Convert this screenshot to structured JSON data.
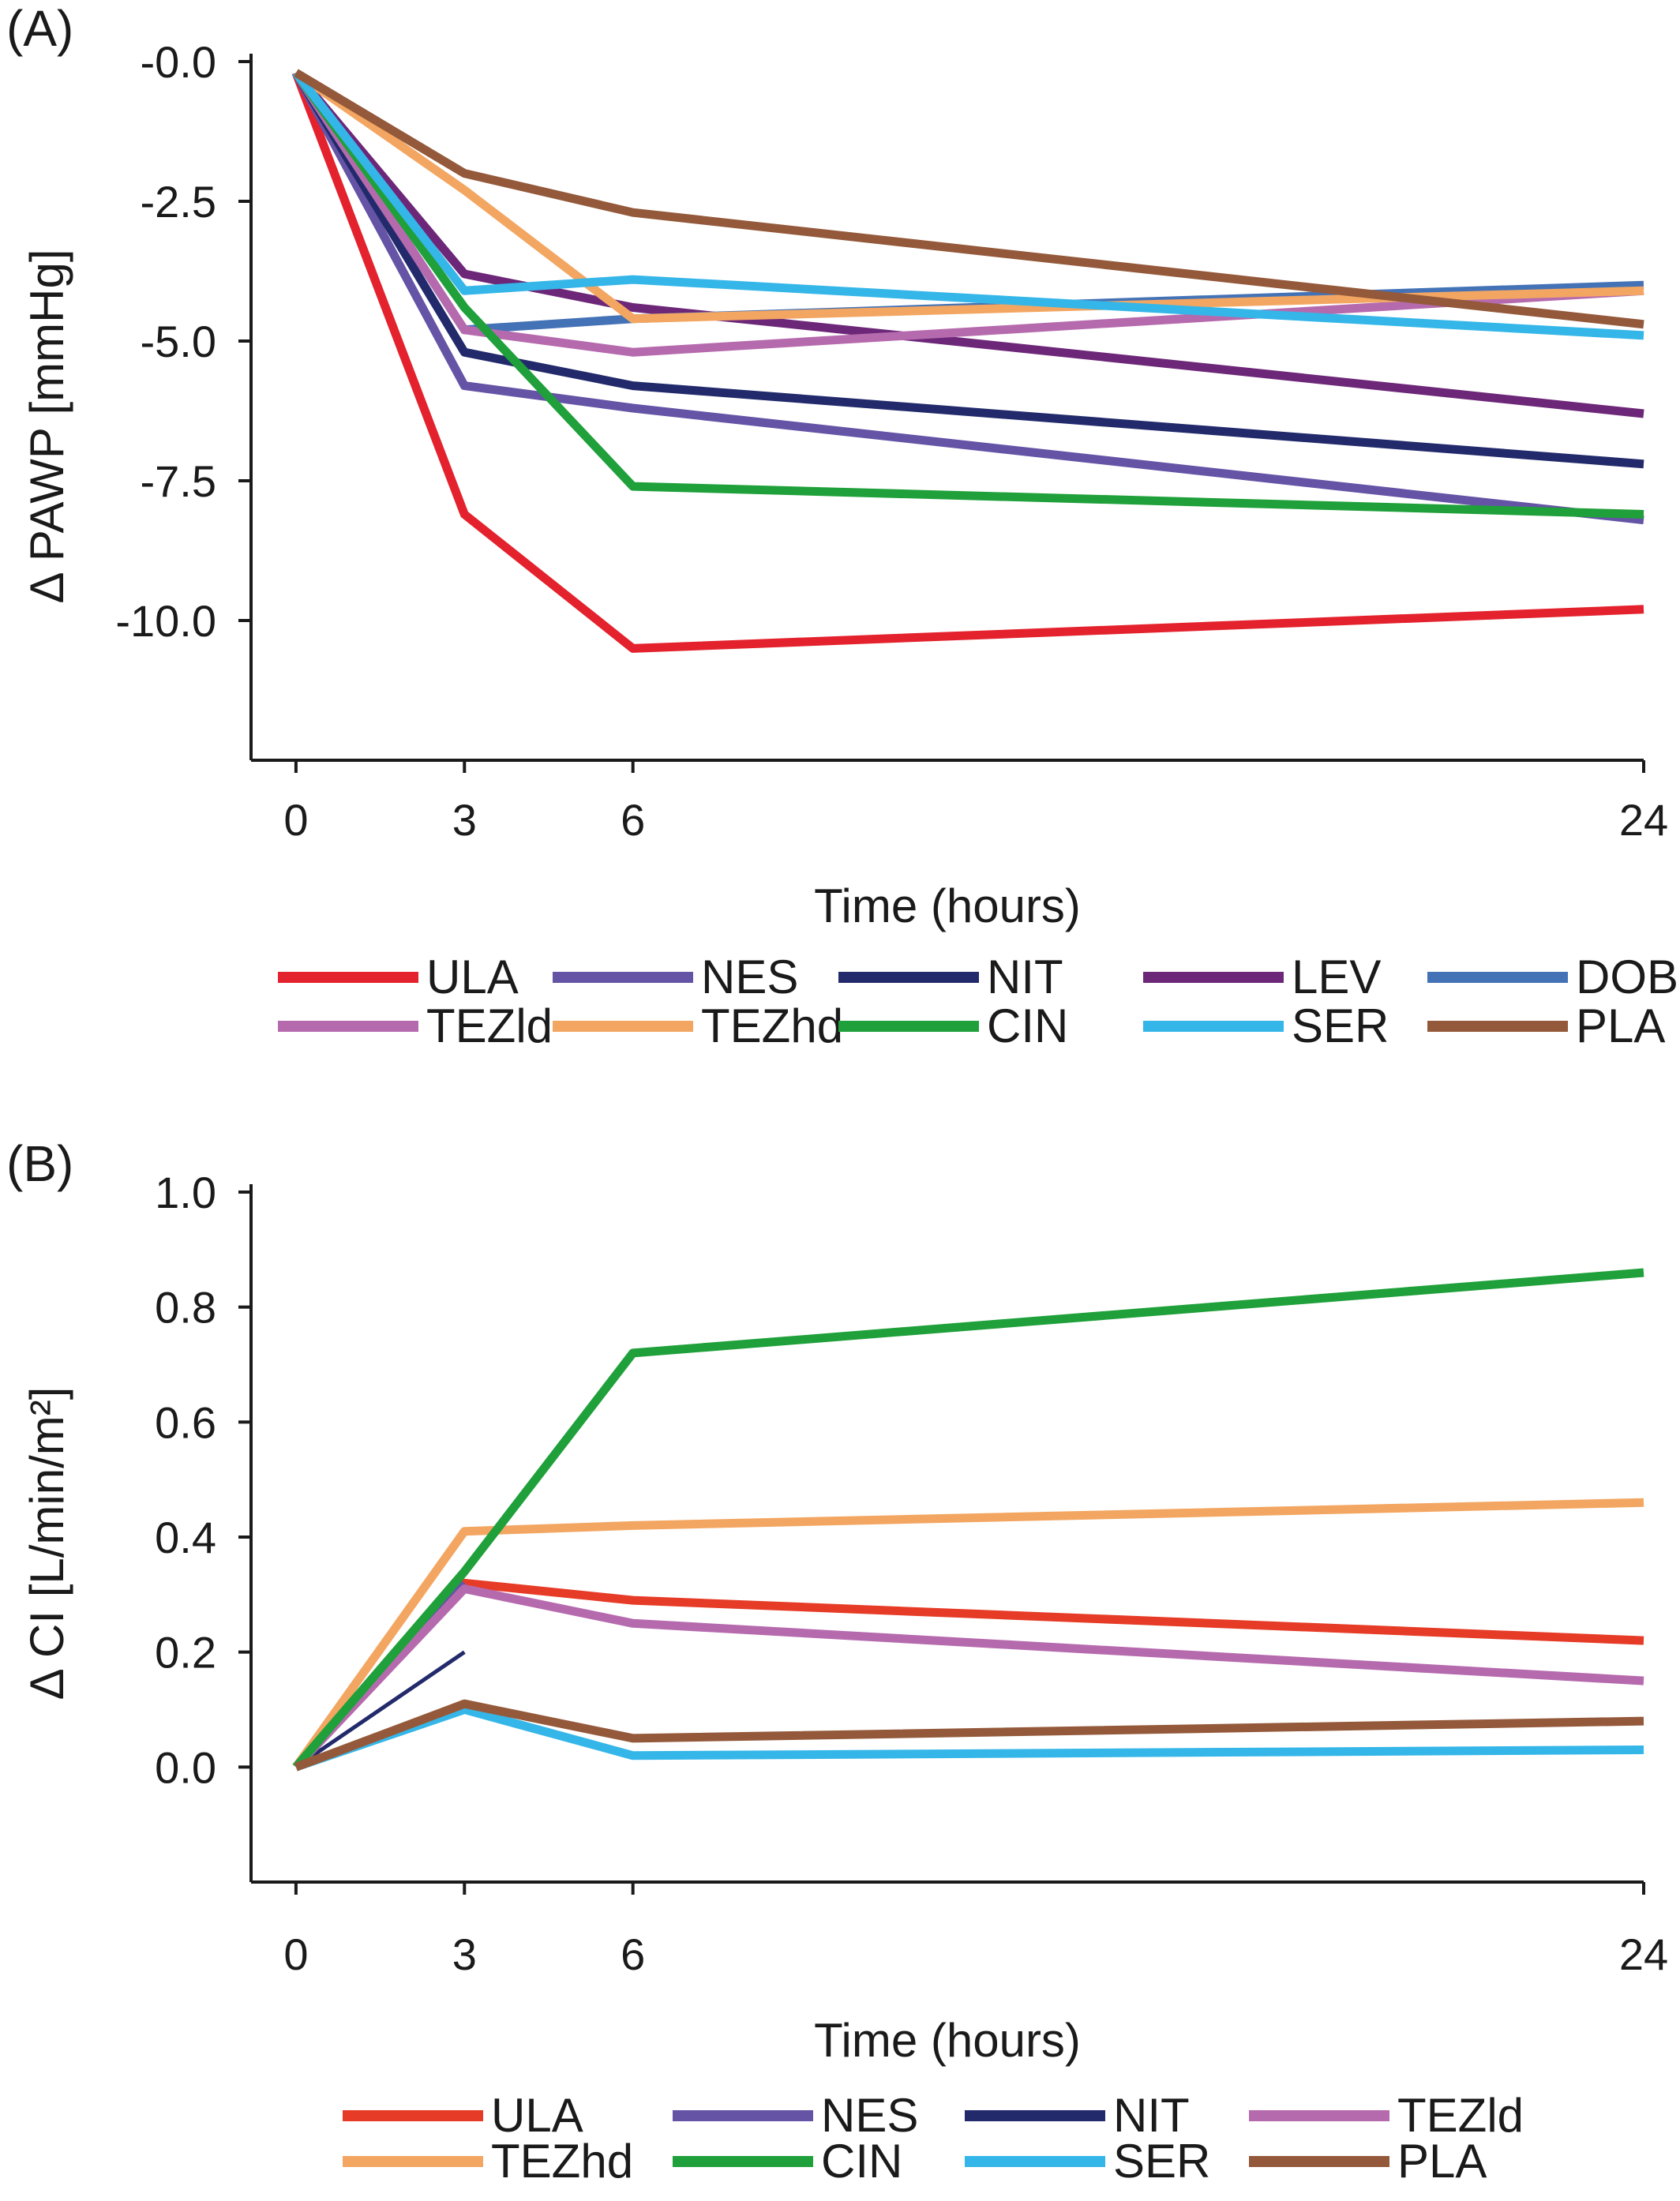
{
  "figure": {
    "panels": [
      {
        "panel_label": "(A)",
        "chart_data": {
          "type": "line",
          "title": "",
          "xlabel": "Time (hours)",
          "ylabel": "Δ PAWP [mmHg]",
          "x": [
            0,
            3,
            6,
            24
          ],
          "xticks": [
            0,
            3,
            6,
            24
          ],
          "yticks": [
            -10.0,
            -7.5,
            -5.0,
            -2.5,
            0.0
          ],
          "ytick_labels": [
            "-10.0",
            "-7.5",
            "-5.0",
            "-2.5",
            "-0.0"
          ],
          "ylim": [
            -12.5,
            0.0
          ],
          "xlim": [
            -0.8,
            24
          ],
          "grid": false,
          "legend_position": "bottom",
          "series": [
            {
              "name": "ULA",
              "color": "#e3222d",
              "values": [
                -0.2,
                -8.1,
                -10.5,
                -9.8
              ]
            },
            {
              "name": "NES",
              "color": "#6553a6",
              "values": [
                -0.2,
                -5.8,
                -6.2,
                -8.2
              ]
            },
            {
              "name": "NIT",
              "color": "#222a6b",
              "values": [
                -0.2,
                -5.2,
                -5.8,
                -7.2
              ]
            },
            {
              "name": "LEV",
              "color": "#6d2778",
              "values": [
                -0.2,
                -3.8,
                -4.4,
                -6.3
              ]
            },
            {
              "name": "DOB",
              "color": "#4472b6",
              "values": [
                -0.2,
                -4.8,
                -4.6,
                -4.0
              ]
            },
            {
              "name": "TEZld",
              "color": "#b66aae",
              "values": [
                -0.2,
                -4.8,
                -5.2,
                -4.1
              ]
            },
            {
              "name": "TEZhd",
              "color": "#f3a661",
              "values": [
                -0.2,
                -2.3,
                -4.6,
                -4.1
              ]
            },
            {
              "name": "CIN",
              "color": "#1fa03a",
              "values": [
                -0.2,
                -4.4,
                -7.6,
                -8.1
              ]
            },
            {
              "name": "SER",
              "color": "#35b6e8",
              "values": [
                -0.2,
                -4.1,
                -3.9,
                -4.9
              ]
            },
            {
              "name": "PLA",
              "color": "#94593a",
              "values": [
                -0.2,
                -2.0,
                -2.7,
                -4.7
              ]
            }
          ],
          "legend": [
            "ULA",
            "NES",
            "NIT",
            "LEV",
            "DOB",
            "TEZld",
            "TEZhd",
            "CIN",
            "SER",
            "PLA"
          ]
        }
      },
      {
        "panel_label": "(B)",
        "chart_data": {
          "type": "line",
          "title": "",
          "xlabel": "Time (hours)",
          "ylabel": "Δ CI [L/min/m²]",
          "x": [
            0,
            3,
            6,
            24
          ],
          "xticks": [
            0,
            3,
            6,
            24
          ],
          "yticks": [
            0.0,
            0.2,
            0.4,
            0.6,
            0.8,
            1.0
          ],
          "ytick_labels": [
            "0.0",
            "0.2",
            "0.4",
            "0.6",
            "0.8",
            "1.0"
          ],
          "ylim": [
            -0.2,
            1.0
          ],
          "xlim": [
            -0.8,
            24
          ],
          "grid": false,
          "legend_position": "bottom",
          "series": [
            {
              "name": "ULA",
              "color": "#e63b26",
              "values": [
                0.0,
                0.32,
                0.29,
                0.22
              ]
            },
            {
              "name": "NES",
              "color": "#6553a6",
              "values": [
                0.0,
                0.32,
                null,
                null
              ]
            },
            {
              "name": "NIT",
              "color": "#222a6b",
              "values": [
                0.0,
                0.2,
                null,
                null
              ]
            },
            {
              "name": "TEZld",
              "color": "#b66aae",
              "values": [
                0.0,
                0.31,
                0.25,
                0.15
              ]
            },
            {
              "name": "TEZhd",
              "color": "#f3a661",
              "values": [
                0.0,
                0.41,
                0.42,
                0.46
              ]
            },
            {
              "name": "CIN",
              "color": "#1fa03a",
              "values": [
                0.0,
                0.34,
                0.72,
                0.86
              ]
            },
            {
              "name": "SER",
              "color": "#35b6e8",
              "values": [
                0.0,
                0.1,
                0.02,
                0.03
              ]
            },
            {
              "name": "PLA",
              "color": "#94593a",
              "values": [
                0.0,
                0.11,
                0.05,
                0.08
              ]
            }
          ],
          "legend": [
            "ULA",
            "NES",
            "NIT",
            "TEZld",
            "TEZhd",
            "CIN",
            "SER",
            "PLA"
          ]
        }
      }
    ]
  }
}
